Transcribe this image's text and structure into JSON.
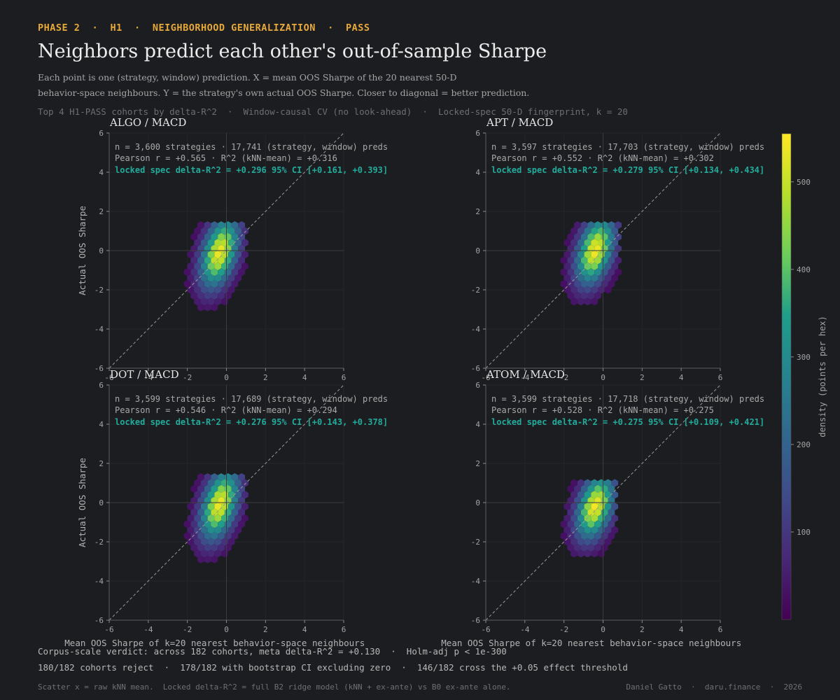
{
  "header": {
    "phase_line": "PHASE 2  ·  H1  ·  NEIGHBORHOOD GENERALIZATION  ·  PASS",
    "title": "Neighbors predict each other's out-of-sample Sharpe",
    "subtitle_line1": "Each point is one (strategy, window) prediction.  X = mean OOS Sharpe of the 20 nearest 50-D",
    "subtitle_line2": "behavior-space neighbours.  Y = the strategy's own actual OOS Sharpe.  Closer to diagonal = better prediction.",
    "meta_line": "Top 4 H1-PASS cohorts by delta-R^2  ·  Window-causal CV (no look-ahead)  ·  Locked-spec 50-D fingerprint, k = 20"
  },
  "colors": {
    "background": "#1c1d20",
    "accent": "#e7a93a",
    "stat_accent": "#23ab9c",
    "diagonal": "#9a9a9a",
    "colormap": [
      "#440154",
      "#482777",
      "#3f4a8a",
      "#31678e",
      "#26838f",
      "#1f9d8a",
      "#6cce5a",
      "#b6de2b",
      "#fee825"
    ]
  },
  "chart_data": [
    {
      "type": "heatmap",
      "title": "ALGO / MACD",
      "xlabel": "Mean OOS Sharpe of k=20 nearest behavior-space neighbours",
      "ylabel": "Actual OOS Sharpe",
      "xlim": [
        -6,
        6
      ],
      "ylim": [
        -6,
        6
      ],
      "xticks": [
        -6,
        -4,
        -2,
        0,
        2,
        4,
        6
      ],
      "yticks": [
        -6,
        -4,
        -2,
        0,
        2,
        4,
        6
      ],
      "diagonal": true,
      "stat_line1": "n = 3,600 strategies  ·  17,741 (strategy, window) preds",
      "stat_line2": "Pearson r = +0.565  ·  R^2 (kNN-mean) = +0.316",
      "stat_line3": "locked spec  delta-R^2 = +0.296  95% CI [+0.161, +0.393]",
      "density": {
        "center_x": -0.35,
        "center_y": -0.1,
        "spread_x": 0.62,
        "spread_y": 1.25,
        "slope": 0.22,
        "x_range": [
          -3.0,
          1.0
        ],
        "y_range": [
          -2.9,
          1.4
        ],
        "peak": 540
      }
    },
    {
      "type": "heatmap",
      "title": "APT / MACD",
      "xlabel": "Mean OOS Sharpe of k=20 nearest behavior-space neighbours",
      "ylabel": "",
      "xlim": [
        -6,
        6
      ],
      "ylim": [
        -6,
        6
      ],
      "xticks": [
        -6,
        -4,
        -2,
        0,
        2,
        4,
        6
      ],
      "yticks": [
        -6,
        -4,
        -2,
        0,
        2,
        4,
        6
      ],
      "diagonal": true,
      "stat_line1": "n = 3,597 strategies  ·  17,703 (strategy, window) preds",
      "stat_line2": "Pearson r = +0.552  ·  R^2 (kNN-mean) = +0.302",
      "stat_line3": "locked spec  delta-R^2 = +0.279  95% CI [+0.134, +0.434]",
      "density": {
        "center_x": -0.4,
        "center_y": 0.0,
        "spread_x": 0.62,
        "spread_y": 1.2,
        "slope": 0.22,
        "x_range": [
          -2.4,
          0.8
        ],
        "y_range": [
          -2.6,
          1.4
        ],
        "peak": 545
      }
    },
    {
      "type": "heatmap",
      "title": "DOT / MACD",
      "xlabel": "Mean OOS Sharpe of k=20 nearest behavior-space neighbours",
      "ylabel": "Actual OOS Sharpe",
      "xlim": [
        -6,
        6
      ],
      "ylim": [
        -6,
        6
      ],
      "xticks": [
        -6,
        -4,
        -2,
        0,
        2,
        4,
        6
      ],
      "yticks": [
        -6,
        -4,
        -2,
        0,
        2,
        4,
        6
      ],
      "diagonal": true,
      "stat_line1": "n = 3,599 strategies  ·  17,689 (strategy, window) preds",
      "stat_line2": "Pearson r = +0.546  ·  R^2 (kNN-mean) = +0.294",
      "stat_line3": "locked spec  delta-R^2 = +0.276  95% CI [+0.143, +0.378]",
      "density": {
        "center_x": -0.35,
        "center_y": -0.1,
        "spread_x": 0.62,
        "spread_y": 1.25,
        "slope": 0.22,
        "x_range": [
          -2.6,
          1.1
        ],
        "y_range": [
          -2.9,
          1.4
        ],
        "peak": 540
      }
    },
    {
      "type": "heatmap",
      "title": "ATOM / MACD",
      "xlabel": "Mean OOS Sharpe of k=20 nearest behavior-space neighbours",
      "ylabel": "",
      "xlim": [
        -6,
        6
      ],
      "ylim": [
        -6,
        6
      ],
      "xticks": [
        -6,
        -4,
        -2,
        0,
        2,
        4,
        6
      ],
      "yticks": [
        -6,
        -4,
        -2,
        0,
        2,
        4,
        6
      ],
      "diagonal": true,
      "stat_line1": "n = 3,599 strategies  ·  17,718 (strategy, window) preds",
      "stat_line2": "Pearson r = +0.528  ·  R^2 (kNN-mean) = +0.275",
      "stat_line3": "locked spec  delta-R^2 = +0.275  95% CI [+0.109, +0.421]",
      "density": {
        "center_x": -0.4,
        "center_y": -0.2,
        "spread_x": 0.62,
        "spread_y": 1.15,
        "slope": 0.22,
        "x_range": [
          -2.6,
          0.7
        ],
        "y_range": [
          -2.6,
          1.1
        ],
        "peak": 545
      }
    }
  ],
  "colorbar": {
    "label": "density (points per hex)",
    "ticks": [
      100,
      200,
      300,
      400,
      500
    ],
    "min": 0,
    "max": 555
  },
  "verdict": {
    "line1": "Corpus-scale verdict: across 182 cohorts, meta delta-R^2 = +0.130  ·  Holm-adj p < 1e-300",
    "line2": "180/182 cohorts reject  ·  178/182 with bootstrap CI excluding zero  ·  146/182 cross the +0.05 effect threshold"
  },
  "footer": {
    "note": "Scatter x = raw kNN mean.  Locked delta-R^2 = full B2 ridge model (kNN + ex-ante) vs B0 ex-ante alone.",
    "credit": "Daniel Gatto  ·  daru.finance  ·  2026"
  }
}
